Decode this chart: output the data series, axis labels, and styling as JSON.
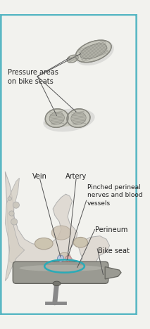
{
  "border_color": "#5bb8c4",
  "background_color": "#f2f2ee",
  "text_color": "#222222",
  "circle_color": "#2aabb8",
  "line_color": "#555555",
  "seat_fill": "#c8c8be",
  "seat_edge": "#888880",
  "hatch_color": "#999990",
  "body_fill": "#ddd8cc",
  "bone_fill": "#ccc4aa",
  "label_pressure": "Pressure areas\non bike seats",
  "label_vein": "Vein",
  "label_artery": "Artery",
  "label_pinched": "Pinched perineal\nnerves and blood\nvessels",
  "label_perineum": "Perineum",
  "label_bikeseat": "Bike seat",
  "font_size": 7.0
}
